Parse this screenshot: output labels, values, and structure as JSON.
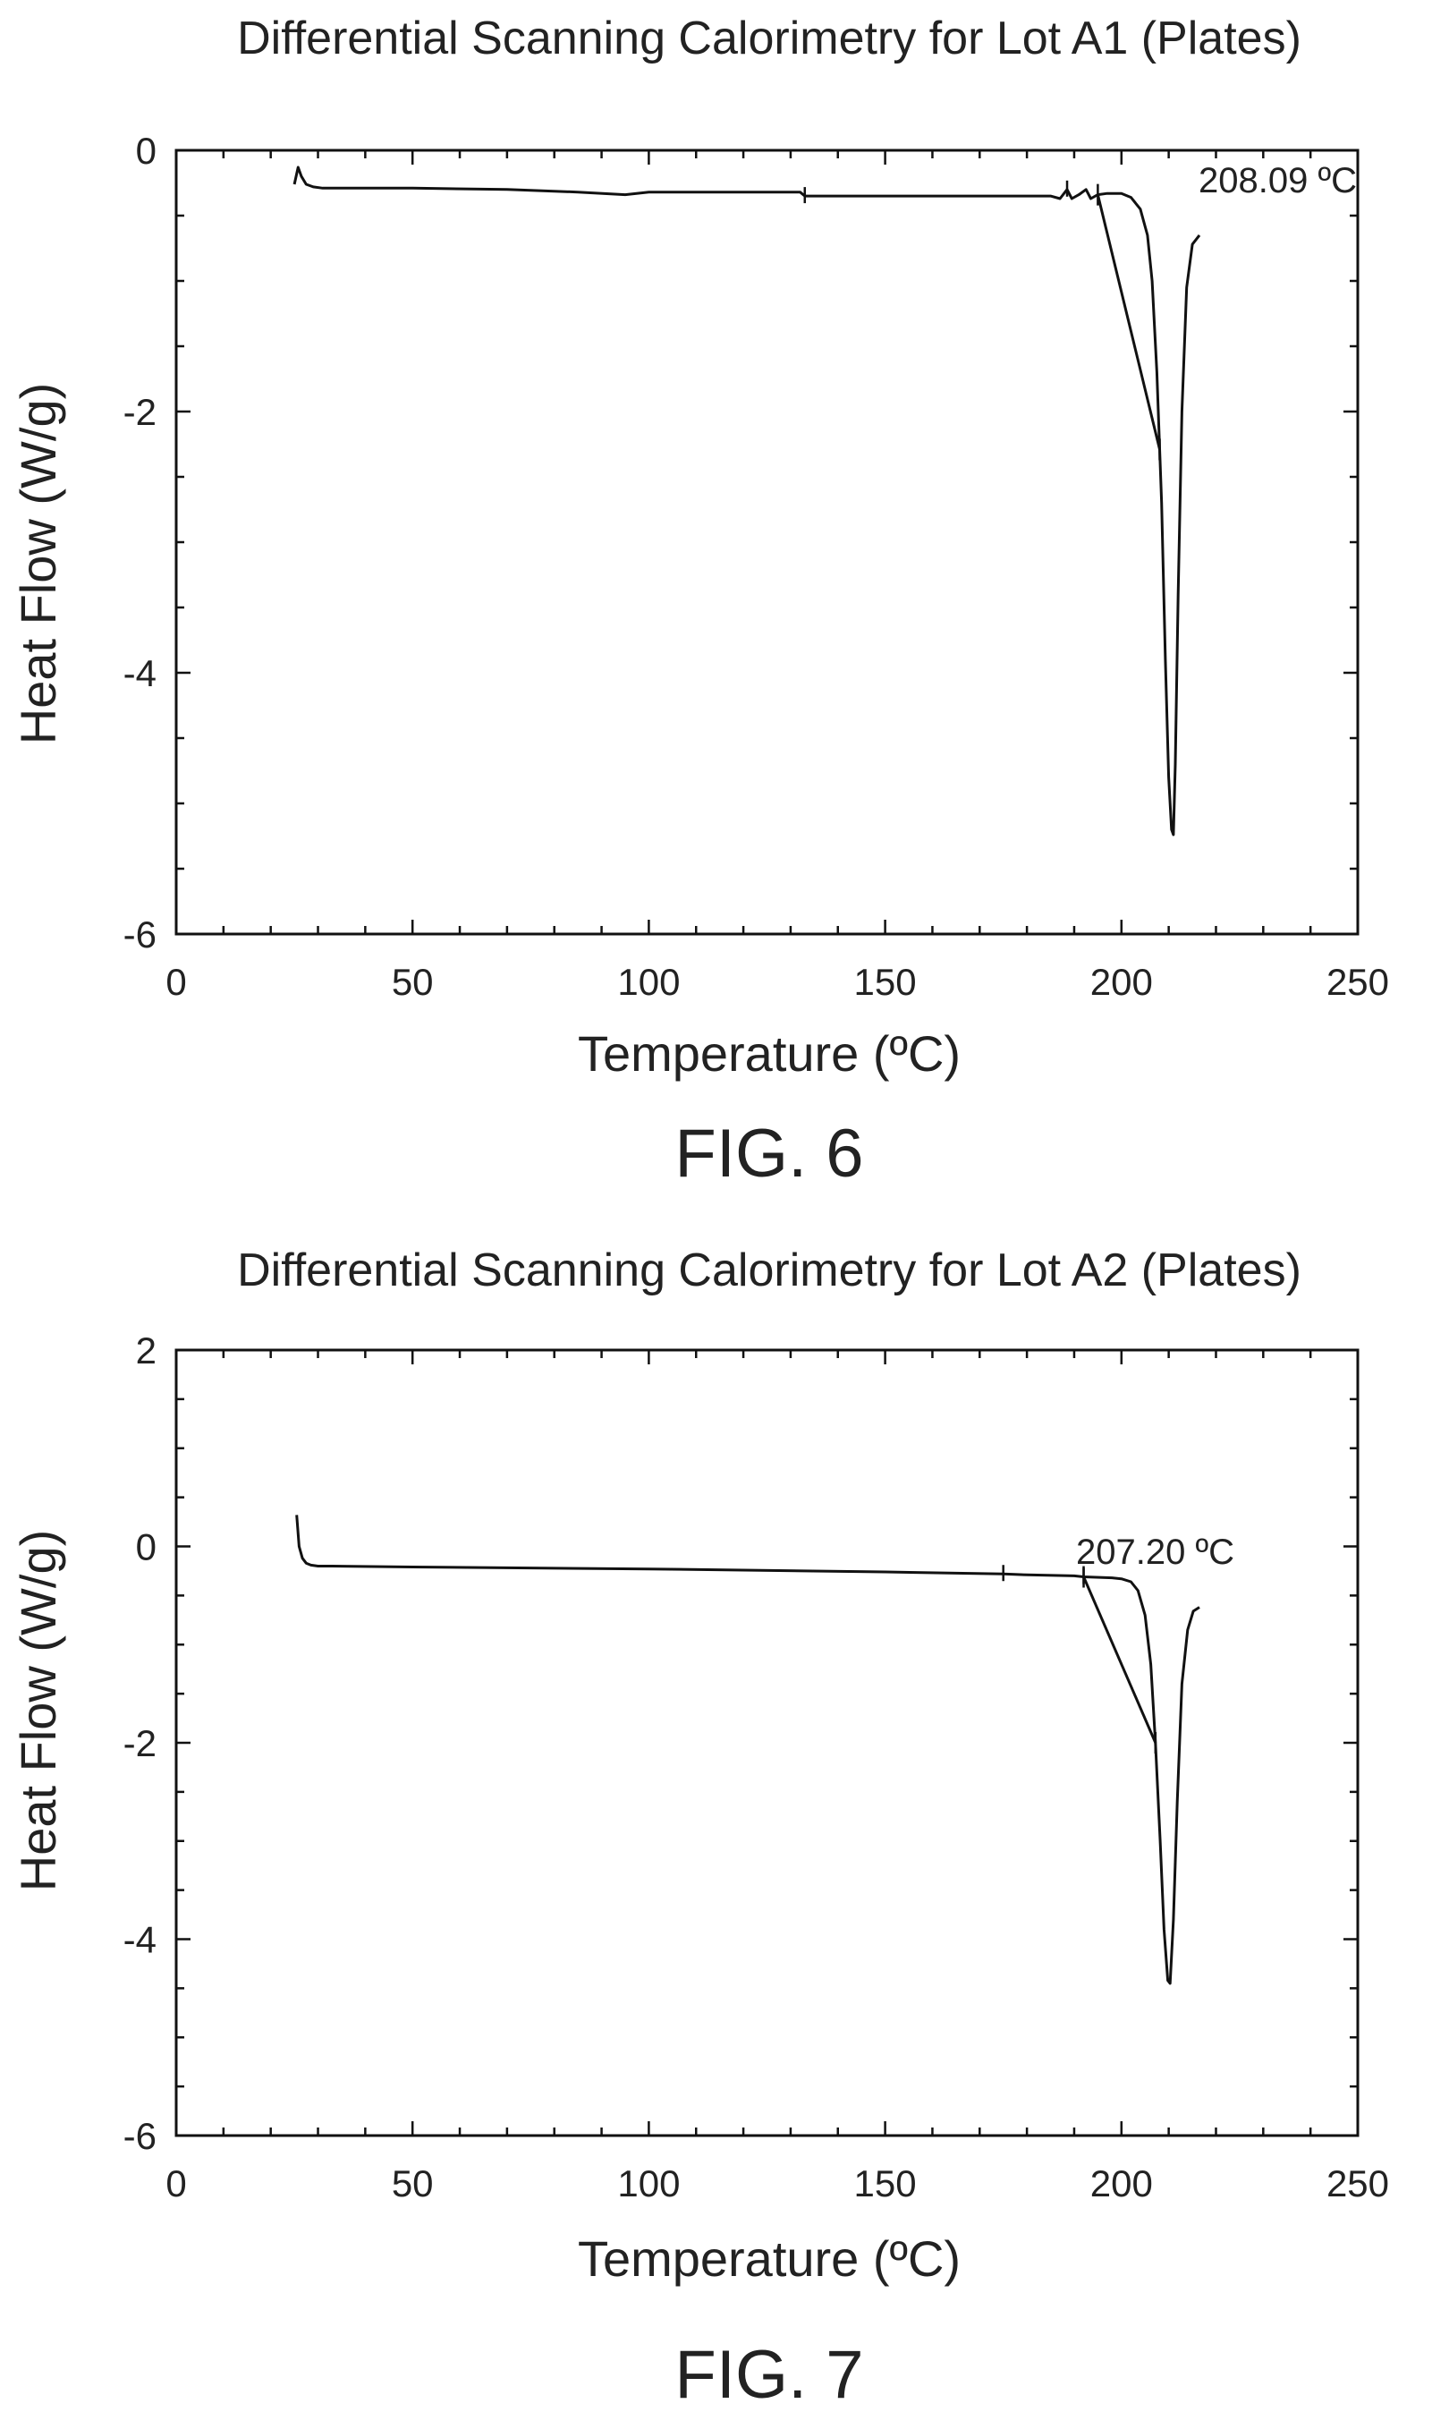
{
  "chart_data": [
    {
      "type": "line",
      "title": "Differential Scanning Calorimetry for Lot A1 (Plates)",
      "xlabel": "Temperature (ºC)",
      "ylabel": "Heat Flow (W/g)",
      "xlim": [
        0,
        250
      ],
      "ylim": [
        -6,
        0
      ],
      "x_ticks": [
        0,
        50,
        100,
        150,
        200,
        250
      ],
      "y_ticks": [
        0,
        -2,
        -4,
        -6
      ],
      "grid": false,
      "annotation": {
        "text": "208.09 ºC",
        "x": 208.09
      },
      "caption": "FIG. 6",
      "series": [
        {
          "x": [
            25,
            25.8,
            26.5,
            27.5,
            29,
            31,
            35,
            50,
            70,
            85,
            95,
            100,
            110,
            120,
            132,
            133,
            150,
            170,
            185,
            187,
            188.5,
            189.5,
            191,
            192.5,
            193.5,
            195,
            197,
            200,
            202,
            204,
            205.5,
            206.5,
            207.5,
            208.5,
            209.3,
            210,
            210.6,
            211,
            211.4,
            212,
            212.8,
            213.8,
            215,
            216.5
          ],
          "values": [
            -0.26,
            -0.13,
            -0.2,
            -0.26,
            -0.28,
            -0.29,
            -0.29,
            -0.29,
            -0.3,
            -0.32,
            -0.34,
            -0.32,
            -0.32,
            -0.32,
            -0.32,
            -0.35,
            -0.35,
            -0.35,
            -0.35,
            -0.37,
            -0.3,
            -0.37,
            -0.34,
            -0.3,
            -0.37,
            -0.34,
            -0.33,
            -0.33,
            -0.36,
            -0.45,
            -0.65,
            -1.0,
            -1.7,
            -2.7,
            -3.9,
            -4.8,
            -5.2,
            -5.24,
            -4.7,
            -3.4,
            -2.0,
            -1.05,
            -0.72,
            -0.65
          ]
        }
      ]
    },
    {
      "type": "line",
      "title": "Differential Scanning Calorimetry for Lot A2 (Plates)",
      "xlabel": "Temperature (ºC)",
      "ylabel": "Heat Flow (W/g)",
      "xlim": [
        0,
        250
      ],
      "ylim": [
        -6,
        2
      ],
      "x_ticks": [
        0,
        50,
        100,
        150,
        200,
        250
      ],
      "y_ticks": [
        2,
        0,
        -2,
        -4,
        -6
      ],
      "grid": false,
      "annotation": {
        "text": "207.20 ºC",
        "x": 207.2
      },
      "caption": "FIG. 7",
      "series": [
        {
          "x": [
            25.5,
            26,
            26.7,
            27.5,
            28.5,
            30,
            33,
            50,
            100,
            150,
            175,
            180,
            190,
            192,
            198,
            200,
            202,
            203.5,
            205,
            206.2,
            207.2,
            208.2,
            209,
            209.8,
            210.3,
            211,
            211.8,
            212.8,
            214,
            215.2,
            216.5
          ],
          "values": [
            0.32,
            0.0,
            -0.12,
            -0.17,
            -0.19,
            -0.2,
            -0.2,
            -0.21,
            -0.23,
            -0.26,
            -0.28,
            -0.29,
            -0.3,
            -0.31,
            -0.32,
            -0.33,
            -0.36,
            -0.45,
            -0.7,
            -1.2,
            -2.0,
            -3.0,
            -3.9,
            -4.42,
            -4.45,
            -3.8,
            -2.6,
            -1.4,
            -0.85,
            -0.66,
            -0.62
          ]
        }
      ]
    }
  ]
}
